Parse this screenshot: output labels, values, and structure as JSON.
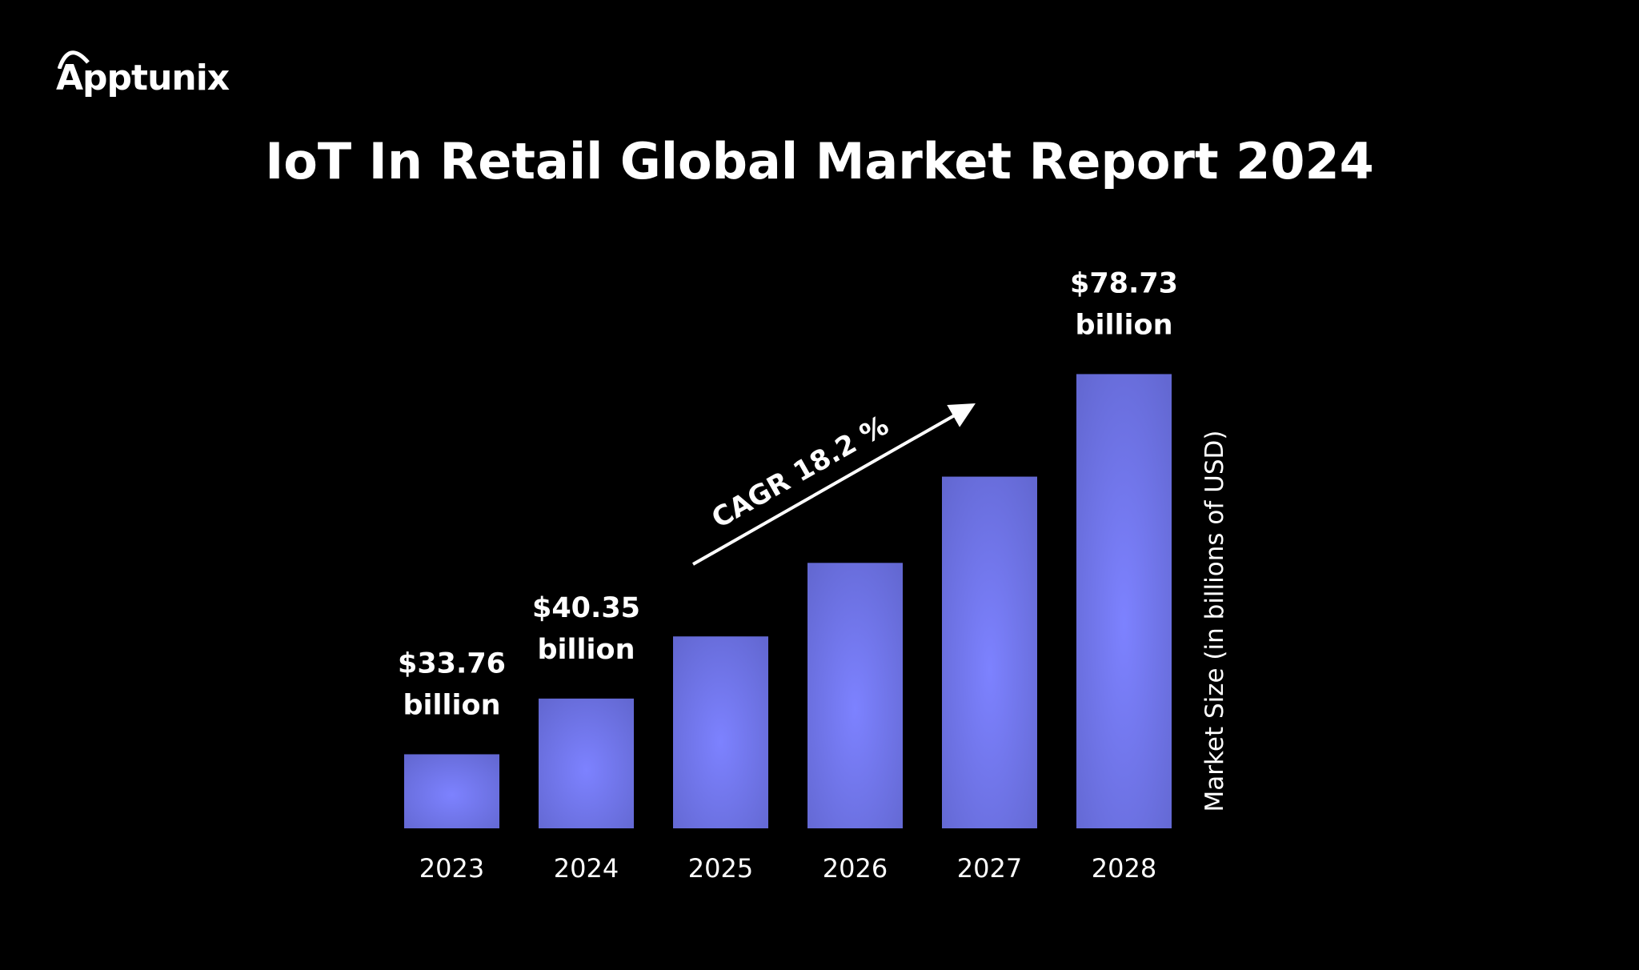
{
  "logo": {
    "text": "Apptunix"
  },
  "chart_data": {
    "type": "bar",
    "title": "IoT In Retail Global Market Report 2024",
    "ylabel": "Market Size (in billions of USD)",
    "xlabel": "",
    "categories": [
      "2023",
      "2024",
      "2025",
      "2026",
      "2027",
      "2028"
    ],
    "values": [
      33.76,
      40.35,
      47.7,
      56.4,
      66.6,
      78.73
    ],
    "data_labels": [
      {
        "category": "2023",
        "value_text": "$33.76",
        "unit_text": "billion"
      },
      {
        "category": "2024",
        "value_text": "$40.35",
        "unit_text": "billion"
      },
      {
        "category": "2028",
        "value_text": "$78.73",
        "unit_text": "billion"
      }
    ],
    "annotation": "CAGR 18.2 %",
    "ylim": [
      25,
      80
    ],
    "grid": false,
    "bar_color": "#7b7ffb",
    "background": "#000000"
  }
}
